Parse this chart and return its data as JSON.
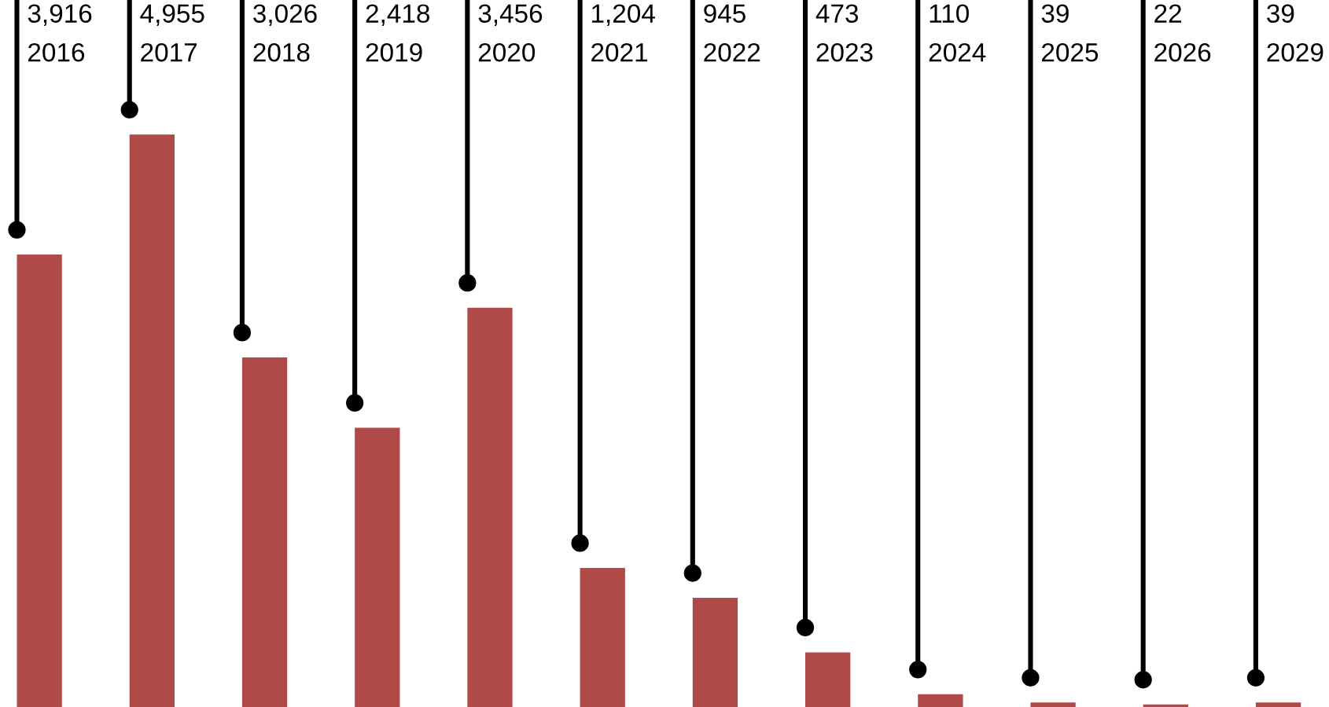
{
  "chart_data": {
    "type": "bar",
    "categories": [
      "2016",
      "2017",
      "2018",
      "2019",
      "2020",
      "2021",
      "2022",
      "2023",
      "2024",
      "2025",
      "2026",
      "2029"
    ],
    "values": [
      3916,
      4955,
      3026,
      2418,
      3456,
      1204,
      945,
      473,
      110,
      39,
      22,
      39
    ],
    "value_labels": [
      "3,916",
      "4,955",
      "3,026",
      "2,418",
      "3,456",
      "1,204",
      "945",
      "473",
      "110",
      "39",
      "22",
      "39"
    ],
    "color": "#b04a48"
  }
}
